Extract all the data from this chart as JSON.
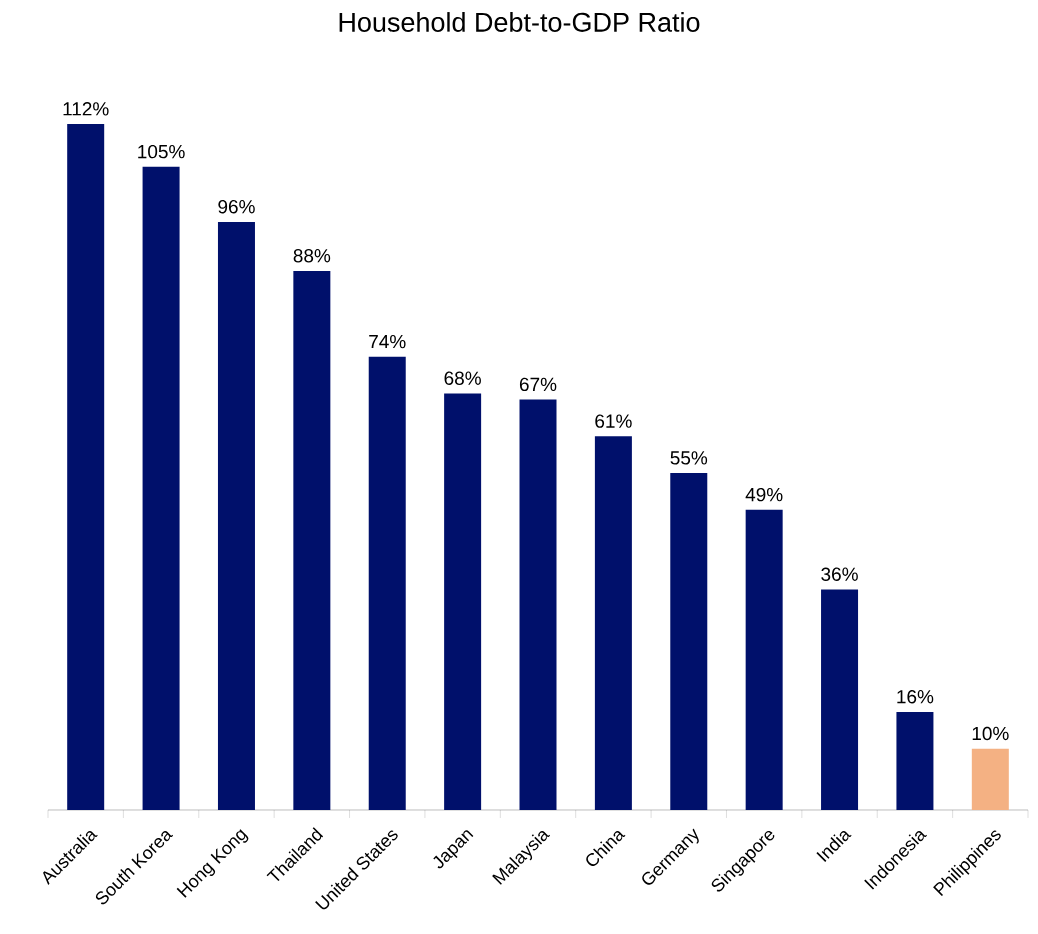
{
  "chart_data": {
    "type": "bar",
    "title": "Household Debt-to-GDP Ratio",
    "categories": [
      "Australia",
      "South Korea",
      "Hong Kong",
      "Thailand",
      "United States",
      "Japan",
      "Malaysia",
      "China",
      "Germany",
      "Singapore",
      "India",
      "Indonesia",
      "Philippines"
    ],
    "values": [
      112,
      105,
      96,
      88,
      74,
      68,
      67,
      61,
      55,
      49,
      36,
      16,
      10
    ],
    "value_labels": [
      "112%",
      "105%",
      "96%",
      "88%",
      "74%",
      "68%",
      "67%",
      "61%",
      "55%",
      "49%",
      "36%",
      "16%",
      "10%"
    ],
    "colors": [
      "#00106b",
      "#00106b",
      "#00106b",
      "#00106b",
      "#00106b",
      "#00106b",
      "#00106b",
      "#00106b",
      "#00106b",
      "#00106b",
      "#00106b",
      "#00106b",
      "#f4b183"
    ],
    "ylim": [
      0,
      112
    ]
  }
}
